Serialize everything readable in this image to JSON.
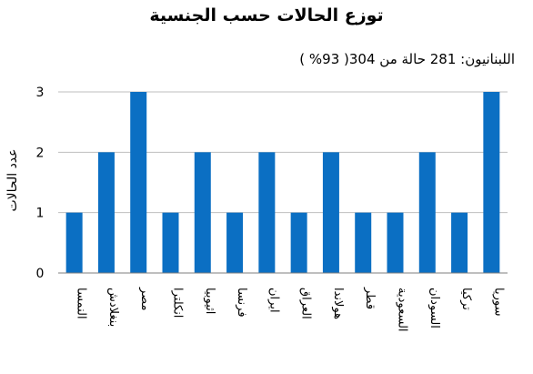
{
  "chart_data": {
    "type": "bar",
    "title": "توزع الحالات حسب الجنسية",
    "subtitle": "اللبنانيون: 281 حالة من 304( 93% )",
    "ylabel": "عدد الحالات",
    "xlabel": "",
    "ylim": [
      0,
      3
    ],
    "yticks": [
      "0",
      "1",
      "2",
      "3"
    ],
    "grid": true,
    "bar_color": "#0b6fc3",
    "categories": [
      "النمسا",
      "بنغلادش",
      "مصر",
      "انكلترا",
      "اثيوبيا",
      "فرنسا",
      "ايران",
      "العراق",
      "هولاندا",
      "قطر",
      "السعودية",
      "السودان",
      "ترکيا",
      "سوريا"
    ],
    "values": [
      1,
      2,
      3,
      1,
      2,
      1,
      2,
      1,
      2,
      1,
      1,
      2,
      1,
      3
    ]
  }
}
